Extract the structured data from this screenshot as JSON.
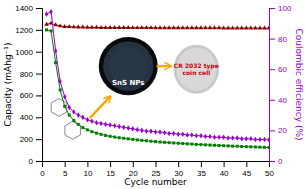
{
  "chart_data": {
    "type": "line",
    "xlabel": "Cycle number",
    "ylabel": "Capacity (mAhg⁻¹)",
    "y2label": "Coulombic efficiency (%)",
    "x": [
      1,
      2,
      3,
      4,
      5,
      6,
      7,
      8,
      9,
      10,
      11,
      12,
      13,
      14,
      15,
      16,
      17,
      18,
      19,
      20,
      21,
      22,
      23,
      24,
      25,
      26,
      27,
      28,
      29,
      30,
      31,
      32,
      33,
      34,
      35,
      36,
      37,
      38,
      39,
      40,
      41,
      42,
      43,
      44,
      45,
      46,
      47,
      48,
      49,
      50
    ],
    "xlim": [
      0,
      50
    ],
    "xticks": [
      0,
      5,
      10,
      15,
      20,
      25,
      30,
      35,
      40,
      45,
      50
    ],
    "ylim": [
      0,
      1400
    ],
    "yticks": [
      0,
      200,
      400,
      600,
      800,
      1000,
      1200,
      1400
    ],
    "y2lim": [
      0,
      100
    ],
    "y2ticks": [
      0,
      20,
      40,
      60,
      80,
      100
    ],
    "series": [
      {
        "color": "#008000",
        "marker": "square",
        "line_style": "solid",
        "values": [
          1200,
          1190,
          900,
          650,
          500,
          420,
          370,
          335,
          305,
          285,
          268,
          255,
          244,
          234,
          226,
          219,
          213,
          208,
          203,
          198,
          193,
          189,
          185,
          181,
          177,
          174,
          171,
          168,
          165,
          162,
          160,
          157,
          155,
          152,
          150,
          148,
          146,
          144,
          142,
          140,
          138,
          136,
          135,
          133,
          131,
          130,
          128,
          127,
          125,
          124
        ]
      },
      {
        "color": "#8B0000",
        "marker": "triangle",
        "line_style": "solid",
        "values": [
          1250,
          1260,
          1245,
          1235,
          1230,
          1228,
          1226,
          1225,
          1224,
          1223,
          1222,
          1222,
          1221,
          1221,
          1220,
          1220,
          1220,
          1220,
          1220,
          1219,
          1219,
          1219,
          1219,
          1219,
          1218,
          1218,
          1218,
          1218,
          1218,
          1218,
          1218,
          1217,
          1217,
          1217,
          1217,
          1217,
          1217,
          1217,
          1217,
          1216,
          1216,
          1216,
          1216,
          1216,
          1216,
          1216,
          1216,
          1215,
          1215,
          1215
        ]
      },
      {
        "color": "#9900cc",
        "marker": "diamond",
        "line_style": "solid",
        "axis": "y2",
        "values": [
          96,
          97.5,
          72,
          52,
          42,
          35,
          32,
          30,
          28.5,
          27,
          26,
          25,
          24.5,
          24,
          23.5,
          23,
          22.5,
          22,
          21.5,
          21,
          20.5,
          20,
          19.5,
          19.5,
          19,
          19,
          18.5,
          18,
          18,
          17.5,
          17.5,
          17,
          17,
          16.5,
          16.5,
          16,
          16,
          15.5,
          15.5,
          15.5,
          15,
          15,
          15,
          14.5,
          14.5,
          14.5,
          14,
          14,
          14,
          13.8
        ]
      }
    ],
    "annotations": [
      "SnS NPs",
      "CR 2032 type\ncoin cell"
    ]
  }
}
